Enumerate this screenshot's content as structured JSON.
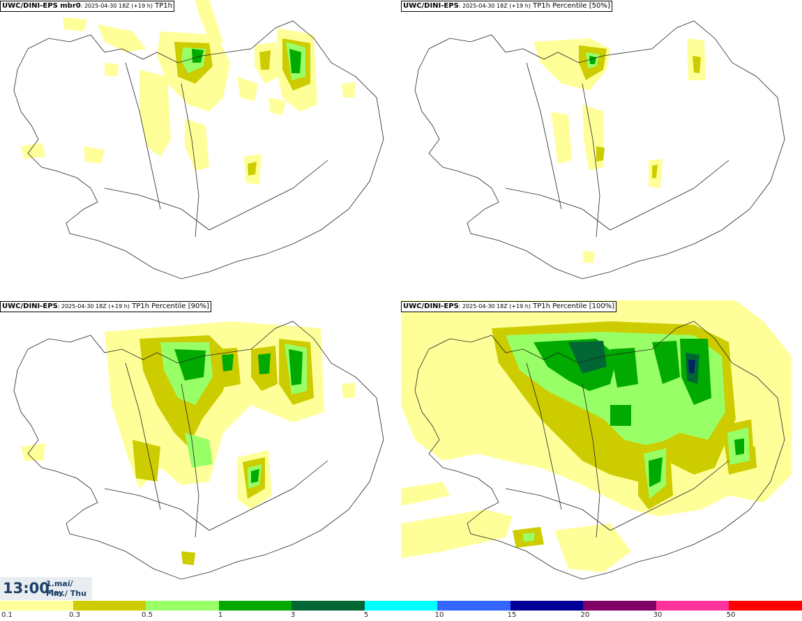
{
  "panels": [
    {
      "model": "UWC/DINI-EPS mbr0",
      "run": ": 2025-04-30 18Z (+19 h)",
      "param": " TP1h"
    },
    {
      "model": "UWC/DINI-EPS",
      "run": ": 2025-04-30 18Z (+19 h)",
      "param": " TP1h Percentile [50%]"
    },
    {
      "model": "UWC/DINI-EPS",
      "run": ": 2025-04-30 18Z (+19 h)",
      "param": " TP1h Percentile [90%]"
    },
    {
      "model": "UWC/DINI-EPS",
      "run": ": 2025-04-30 18Z (+19 h)",
      "param": " TP1h Percentile [100%]"
    }
  ],
  "valid_time": {
    "time": "13:00",
    "date_line1": "1.maí/ May",
    "date_line2": "Fim./ Thu"
  },
  "legend": {
    "colors": [
      "#ffff99",
      "#cccc00",
      "#99ff66",
      "#00aa00",
      "#006633",
      "#00ffff",
      "#3366ff",
      "#000099",
      "#800066",
      "#ff3399",
      "#ff0000"
    ],
    "ticks": [
      "0.1",
      "0.3",
      "0.5",
      "1",
      "3",
      "5",
      "10",
      "15",
      "20",
      "30",
      "50"
    ]
  },
  "colors": {
    "light": "#ffff99",
    "olive": "#cccc00",
    "lgreen": "#99ff66",
    "green": "#00aa00",
    "dgreen": "#006633",
    "navy": "#002266",
    "coast": "#222222"
  }
}
